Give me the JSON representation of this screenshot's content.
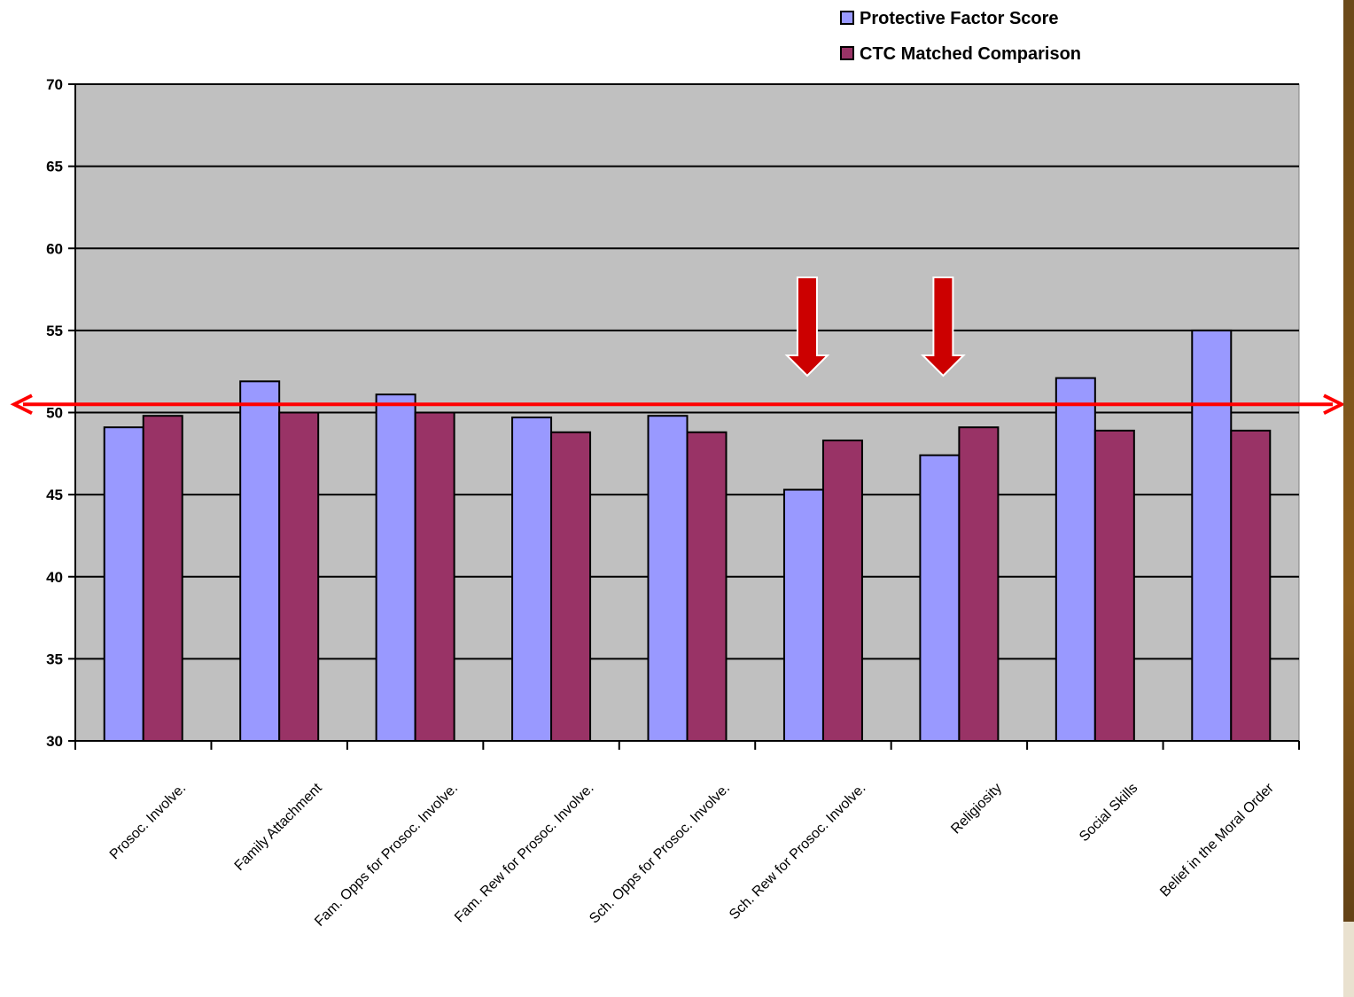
{
  "chart_data": {
    "type": "bar",
    "categories": [
      "Prosoc. Involve.",
      "Family Attachment",
      "Fam. Opps for Prosoc. Involve.",
      "Fam. Rew for Prosoc. Involve.",
      "Sch. Opps for Prosoc. Involve.",
      "Sch. Rew for Prosoc. Involve.",
      "Religiosity",
      "Social Skills",
      "Belief in the Moral Order"
    ],
    "series": [
      {
        "name": "Protective Factor Score",
        "color": "#9999ff",
        "values": [
          49.1,
          51.9,
          51.1,
          49.7,
          49.8,
          45.3,
          47.4,
          52.1,
          55.0
        ]
      },
      {
        "name": "CTC Matched Comparison",
        "color": "#993366",
        "values": [
          49.8,
          50.0,
          50.0,
          48.8,
          48.8,
          48.3,
          49.1,
          48.9,
          48.9
        ]
      }
    ],
    "ylim": [
      30,
      70
    ],
    "yticks": [
      30,
      35,
      40,
      45,
      50,
      55,
      60,
      65,
      70
    ],
    "grid": true,
    "legend_position": "top-right",
    "plot_background": "#c0c0c0",
    "reference_line": {
      "value": 50.5,
      "color": "#ff0000",
      "style": "double-headed arrow"
    },
    "annotations": [
      {
        "type": "down-arrow",
        "category": "Sch. Rew for Prosoc. Involve.",
        "color": "#cc0000"
      },
      {
        "type": "down-arrow",
        "category": "Religiosity",
        "color": "#cc0000"
      }
    ],
    "title": "",
    "xlabel": "",
    "ylabel": ""
  }
}
